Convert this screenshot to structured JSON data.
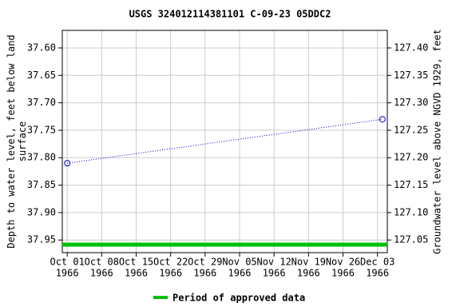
{
  "chart_data": {
    "type": "line",
    "title": "USGS 324012114381101 C-09-23 05DDC2",
    "y_label": [
      "Depth to water level, feet below land",
      "surface"
    ],
    "y2_label": "Groundwater level above NGVD 1929, feet",
    "x": [
      "1966-10-01",
      "1966-12-04"
    ],
    "series": [
      {
        "name": "USGS 324012114381101 C-09-23 05DDC2",
        "color": "#0000cc",
        "values": [
          37.81,
          37.73
        ]
      }
    ],
    "xlim": [
      "1966-09-30",
      "1966-12-05"
    ],
    "xticks": [
      {
        "value": "1966-10-01",
        "label": [
          "Oct 01",
          "1966"
        ]
      },
      {
        "value": "1966-10-08",
        "label": [
          "Oct 08",
          "1966"
        ]
      },
      {
        "value": "1966-10-15",
        "label": [
          "Oct 15",
          "1966"
        ]
      },
      {
        "value": "1966-10-22",
        "label": [
          "Oct 22",
          "1966"
        ]
      },
      {
        "value": "1966-10-29",
        "label": [
          "Oct 29",
          "1966"
        ]
      },
      {
        "value": "1966-11-05",
        "label": [
          "Nov 05",
          "1966"
        ]
      },
      {
        "value": "1966-11-12",
        "label": [
          "Nov 12",
          "1966"
        ]
      },
      {
        "value": "1966-11-19",
        "label": [
          "Nov 19",
          "1966"
        ]
      },
      {
        "value": "1966-11-26",
        "label": [
          "Nov 26",
          "1966"
        ]
      },
      {
        "value": "1966-12-03",
        "label": [
          "Dec 03",
          "1966"
        ]
      }
    ],
    "ylim": [
      37.568,
      37.973
    ],
    "y_inverted": true,
    "yticks": [
      {
        "value": 37.6,
        "label": "37.60"
      },
      37.65,
      {
        "value": 37.7,
        "label": "37.70"
      },
      37.75,
      {
        "value": 37.8,
        "label": "37.80"
      },
      37.85,
      {
        "value": 37.9,
        "label": "37.90"
      },
      37.95
    ],
    "y2lim": [
      127.432,
      127.027
    ],
    "y2ticks": [
      {
        "value": 127.4,
        "label": "127.40"
      },
      127.35,
      {
        "value": 127.3,
        "label": "127.30"
      },
      127.25,
      {
        "value": 127.2,
        "label": "127.20"
      },
      127.15,
      {
        "value": 127.1,
        "label": "127.10"
      },
      127.05
    ],
    "grid": true,
    "approved_period": {
      "name": "Period of approved data",
      "color": "#00c000",
      "start": "1966-09-30",
      "end": "1966-12-05"
    }
  }
}
